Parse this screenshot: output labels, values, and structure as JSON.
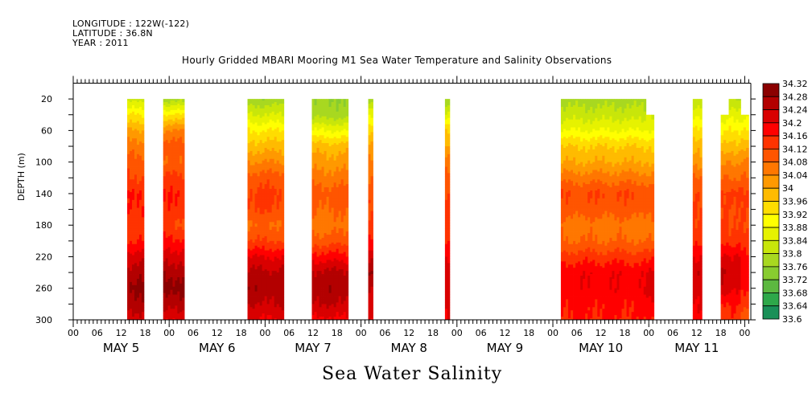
{
  "header": {
    "longitude": "LONGITUDE : 122W(-122)",
    "latitude": "LATITUDE : 36.8N",
    "year": "YEAR : 2011"
  },
  "chart_data": {
    "type": "heatmap",
    "title": "Hourly Gridded MBARI Mooring M1 Sea Water Temperature and Salinity Observations",
    "variable_label": "Sea Water Salinity",
    "xlabel": "",
    "ylabel": "DEPTH (m)",
    "y_axis": {
      "range": [
        0,
        300
      ],
      "inverted": true,
      "tick_labels": [
        20,
        60,
        100,
        140,
        180,
        220,
        260,
        300
      ],
      "minor_ticks": [
        40,
        80,
        120,
        160,
        200,
        240,
        280
      ]
    },
    "x_axis": {
      "start": "2011-05-05 00:00",
      "end": "2011-05-12 01:00",
      "units": "hours since 2011-05-05 00:00",
      "range_hours": [
        0,
        170
      ],
      "hour_tick_labels": [
        "00",
        "06",
        "12",
        "18",
        "00",
        "06",
        "12",
        "18",
        "00",
        "06",
        "12",
        "18",
        "00",
        "06",
        "12",
        "18",
        "00",
        "06",
        "12",
        "18",
        "00",
        "06",
        "12",
        "18",
        "00",
        "06",
        "12",
        "18",
        "00"
      ],
      "day_labels": [
        {
          "label": "MAY   5",
          "day": 5
        },
        {
          "label": "MAY   6",
          "day": 6
        },
        {
          "label": "MAY   7",
          "day": 7
        },
        {
          "label": "MAY   8",
          "day": 8
        },
        {
          "label": "MAY   9",
          "day": 9
        },
        {
          "label": "MAY 10",
          "day": 10
        },
        {
          "label": "MAY 11",
          "day": 11
        }
      ]
    },
    "colorbar": {
      "min": 33.6,
      "max": 34.32,
      "step": 0.04,
      "labels": [
        "34.32",
        "34.28",
        "34.24",
        "34.2",
        "34.16",
        "34.12",
        "34.08",
        "34.04",
        "34",
        "33.96",
        "33.92",
        "33.88",
        "33.84",
        "33.8",
        "33.76",
        "33.72",
        "33.68",
        "33.64",
        "33.6"
      ],
      "colors": [
        "#8b0000",
        "#b30000",
        "#d90000",
        "#ff0000",
        "#ff3300",
        "#ff5500",
        "#ff7700",
        "#ff9900",
        "#ffbb00",
        "#ffdd00",
        "#ffff00",
        "#e6f200",
        "#c8e60a",
        "#a8d820",
        "#88cc30",
        "#5cb840",
        "#2ea84a",
        "#1a9058"
      ],
      "colors_low": [
        "#1a9058",
        "#1e7a78",
        "#226692",
        "#2a58b0",
        "#3a48cc",
        "#4a38e0",
        "#6a28f0",
        "#9018f4",
        "#c010f8"
      ]
    },
    "depth_levels_m": [
      20,
      40,
      60,
      80,
      100,
      120,
      140,
      160,
      180,
      200,
      220,
      240,
      260,
      280,
      300
    ],
    "segments": [
      {
        "start_hour": 13.5,
        "end_hour": 17.7,
        "top_depth": 20,
        "profile": [
          33.82,
          33.92,
          34.0,
          34.06,
          34.1,
          34.12,
          34.17,
          34.16,
          34.14,
          34.16,
          34.22,
          34.26,
          34.29,
          34.26,
          34.22
        ]
      },
      {
        "start_hour": 22.5,
        "end_hour": 27.8,
        "top_depth": 20,
        "profile": [
          33.78,
          33.92,
          34.04,
          34.1,
          34.08,
          34.13,
          34.16,
          34.15,
          34.12,
          34.17,
          34.22,
          34.27,
          34.3,
          34.26,
          34.21
        ]
      },
      {
        "start_hour": 43.6,
        "end_hour": 52.7,
        "top_depth": 20,
        "profile": [
          33.77,
          33.84,
          33.92,
          33.98,
          34.04,
          34.1,
          34.13,
          34.12,
          34.08,
          34.12,
          34.2,
          34.25,
          34.27,
          34.24,
          34.2
        ]
      },
      {
        "start_hour": 59.7,
        "end_hour": 68.8,
        "top_depth": 20,
        "profile": [
          33.76,
          33.78,
          33.88,
          33.98,
          34.02,
          34.06,
          34.1,
          34.08,
          34.06,
          34.1,
          34.18,
          34.25,
          34.27,
          34.24,
          34.19
        ]
      },
      {
        "start_hour": 73.8,
        "end_hour": 75.0,
        "top_depth": 20,
        "profile": [
          33.78,
          33.88,
          33.96,
          34.02,
          34.06,
          34.08,
          34.11,
          34.12,
          34.13,
          34.16,
          34.22,
          34.27,
          34.24,
          34.22,
          34.2
        ]
      },
      {
        "start_hour": 93.0,
        "end_hour": 94.2,
        "top_depth": 20,
        "profile": [
          33.76,
          33.84,
          33.95,
          34.0,
          34.06,
          34.1,
          34.12,
          34.14,
          34.14,
          34.16,
          34.2,
          34.23,
          34.22,
          34.21,
          34.19
        ]
      },
      {
        "start_hour": 122.0,
        "end_hour": 143.3,
        "top_depth": 20,
        "profile": [
          33.78,
          33.82,
          33.88,
          33.96,
          34.0,
          34.06,
          34.12,
          34.1,
          34.06,
          34.08,
          34.14,
          34.19,
          34.19,
          34.17,
          34.16
        ]
      },
      {
        "start_hour": 143.3,
        "end_hour": 145.3,
        "top_depth": 40,
        "profile": [
          33.82,
          33.84,
          33.88,
          33.96,
          34.0,
          34.06,
          34.12,
          34.1,
          34.06,
          34.08,
          34.14,
          34.2,
          34.22,
          34.18,
          34.16
        ]
      },
      {
        "start_hour": 155.0,
        "end_hour": 157.3,
        "top_depth": 20,
        "profile": [
          33.8,
          33.86,
          33.92,
          33.98,
          34.02,
          34.08,
          34.12,
          34.13,
          34.13,
          34.16,
          34.2,
          34.24,
          34.22,
          34.2,
          34.18
        ]
      },
      {
        "start_hour": 162.0,
        "end_hour": 164.0,
        "top_depth": 40,
        "profile": [
          33.84,
          33.86,
          33.92,
          33.98,
          34.04,
          34.08,
          34.12,
          34.12,
          34.12,
          34.14,
          34.2,
          34.24,
          34.23,
          34.16,
          34.14
        ]
      },
      {
        "start_hour": 164.0,
        "end_hour": 167.0,
        "top_depth": 20,
        "profile": [
          33.8,
          33.86,
          33.92,
          33.98,
          34.04,
          34.08,
          34.14,
          34.12,
          34.12,
          34.14,
          34.2,
          34.22,
          34.2,
          34.16,
          34.14
        ]
      },
      {
        "start_hour": 167.0,
        "end_hour": 169.0,
        "top_depth": 40,
        "profile": [
          33.84,
          33.86,
          33.92,
          33.98,
          34.04,
          34.08,
          34.12,
          34.12,
          34.12,
          34.14,
          34.18,
          34.2,
          34.18,
          34.14,
          34.1
        ]
      }
    ]
  }
}
